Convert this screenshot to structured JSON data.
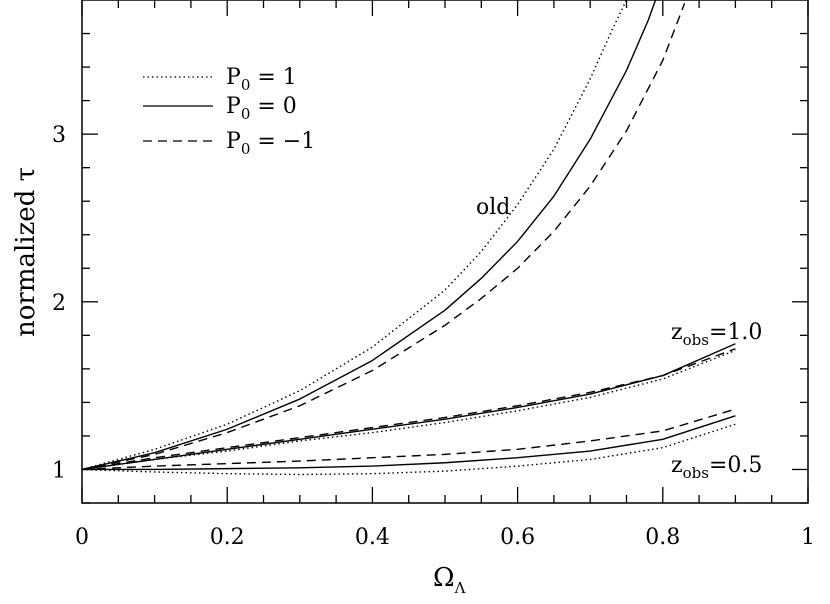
{
  "chart_data": {
    "type": "line",
    "xlabel": "Ω",
    "xlabel_sub": "Λ",
    "ylabel": "normalized τ",
    "xlim": [
      0,
      1
    ],
    "ylim": [
      0.8,
      3.8
    ],
    "xticks": [
      0,
      0.2,
      0.4,
      0.6,
      0.8,
      1
    ],
    "xtick_labels": [
      "0",
      "0.2",
      "0.4",
      "0.6",
      "0.8",
      "1"
    ],
    "yticks": [
      1,
      2,
      3
    ],
    "ytick_labels": [
      "1",
      "2",
      "3"
    ],
    "legend_position": "top-left",
    "legend": [
      {
        "style": "dotted",
        "prefix": "P",
        "sub": "0",
        "text": " = 1"
      },
      {
        "style": "solid",
        "prefix": "P",
        "sub": "0",
        "text": " = 0"
      },
      {
        "style": "dashed",
        "prefix": "P",
        "sub": "0",
        "text": " = −1"
      }
    ],
    "annotations": {
      "old": "old",
      "z10_prefix": "z",
      "z10_sub": "obs",
      "z10_text": "=1.0",
      "z05_prefix": "z",
      "z05_sub": "obs",
      "z05_text": "=0.5"
    },
    "series": [
      {
        "group": "old",
        "style": "dotted",
        "x": [
          0,
          0.1,
          0.2,
          0.3,
          0.4,
          0.5,
          0.55,
          0.6,
          0.65,
          0.7,
          0.73,
          0.75
        ],
        "y": [
          1.0,
          1.12,
          1.27,
          1.47,
          1.73,
          2.07,
          2.3,
          2.58,
          2.91,
          3.33,
          3.62,
          3.8
        ]
      },
      {
        "group": "old",
        "style": "solid",
        "x": [
          0,
          0.1,
          0.2,
          0.3,
          0.4,
          0.5,
          0.55,
          0.6,
          0.65,
          0.7,
          0.75,
          0.78,
          0.79
        ],
        "y": [
          1.0,
          1.1,
          1.24,
          1.42,
          1.65,
          1.95,
          2.14,
          2.36,
          2.63,
          2.97,
          3.38,
          3.68,
          3.8
        ]
      },
      {
        "group": "old",
        "style": "dashed",
        "x": [
          0,
          0.1,
          0.2,
          0.3,
          0.4,
          0.5,
          0.55,
          0.6,
          0.65,
          0.7,
          0.75,
          0.8,
          0.83
        ],
        "y": [
          1.0,
          1.09,
          1.22,
          1.38,
          1.59,
          1.86,
          2.02,
          2.2,
          2.42,
          2.69,
          3.02,
          3.44,
          3.78
        ]
      },
      {
        "group": "z=1.0",
        "style": "dotted",
        "x": [
          0,
          0.1,
          0.2,
          0.3,
          0.4,
          0.5,
          0.6,
          0.7,
          0.8,
          0.9
        ],
        "y": [
          1.0,
          1.06,
          1.11,
          1.17,
          1.22,
          1.28,
          1.35,
          1.43,
          1.54,
          1.71
        ]
      },
      {
        "group": "z=1.0",
        "style": "solid",
        "x": [
          0,
          0.1,
          0.2,
          0.3,
          0.4,
          0.5,
          0.6,
          0.7,
          0.8,
          0.9
        ],
        "y": [
          1.0,
          1.06,
          1.12,
          1.18,
          1.24,
          1.3,
          1.37,
          1.45,
          1.56,
          1.75
        ]
      },
      {
        "group": "z=1.0",
        "style": "dashed",
        "x": [
          0,
          0.1,
          0.2,
          0.3,
          0.4,
          0.5,
          0.6,
          0.7,
          0.8,
          0.9
        ],
        "y": [
          1.0,
          1.07,
          1.13,
          1.19,
          1.25,
          1.31,
          1.38,
          1.46,
          1.56,
          1.72
        ]
      },
      {
        "group": "z=0.5",
        "style": "dotted",
        "x": [
          0,
          0.1,
          0.2,
          0.3,
          0.4,
          0.5,
          0.6,
          0.7,
          0.8,
          0.9
        ],
        "y": [
          1.0,
          0.985,
          0.975,
          0.97,
          0.975,
          0.99,
          1.02,
          1.06,
          1.13,
          1.27
        ]
      },
      {
        "group": "z=0.5",
        "style": "solid",
        "x": [
          0,
          0.1,
          0.2,
          0.3,
          0.4,
          0.5,
          0.6,
          0.7,
          0.8,
          0.9
        ],
        "y": [
          1.0,
          1.0,
          1.005,
          1.01,
          1.02,
          1.04,
          1.07,
          1.11,
          1.18,
          1.32
        ]
      },
      {
        "group": "z=0.5",
        "style": "dashed",
        "x": [
          0,
          0.1,
          0.2,
          0.3,
          0.4,
          0.5,
          0.6,
          0.7,
          0.8,
          0.9
        ],
        "y": [
          1.0,
          1.02,
          1.035,
          1.05,
          1.07,
          1.09,
          1.12,
          1.17,
          1.23,
          1.36
        ]
      }
    ]
  }
}
